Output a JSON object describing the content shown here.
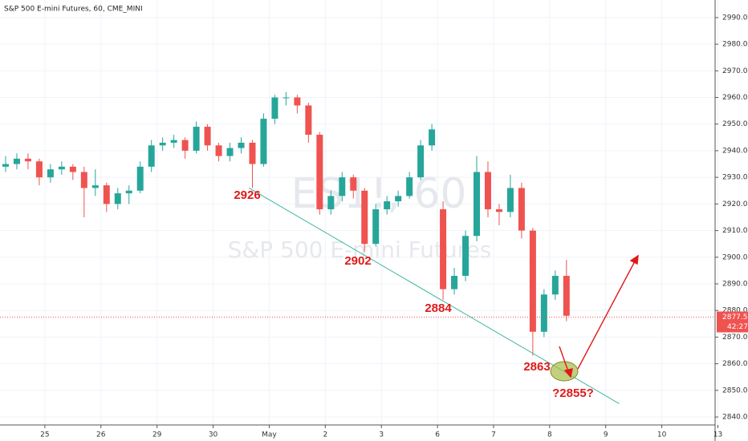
{
  "title": "S&P 500 E-mini Futures, 60, CME_MINI",
  "watermark": {
    "symbol": "ES1!, 60",
    "name": "S&P 500 E-mini Futures"
  },
  "chart_data": {
    "type": "candlestick",
    "x": [
      -0.7,
      -0.5,
      -0.3,
      -0.1,
      0.1,
      0.3,
      0.5,
      0.7,
      0.9,
      1.1,
      1.3,
      1.5,
      1.7,
      1.9,
      2.1,
      2.3,
      2.5,
      2.7,
      2.9,
      3.1,
      3.3,
      3.5,
      3.7,
      3.9,
      4.1,
      4.3,
      4.5,
      4.7,
      4.9,
      5.1,
      5.3,
      5.5,
      5.7,
      5.9,
      6.1,
      6.3,
      6.5,
      6.7,
      6.9,
      7.1,
      7.3,
      7.5,
      7.7,
      7.9,
      8.1,
      8.3,
      8.5,
      8.7,
      8.9,
      9.1,
      9.3
    ],
    "candles": [
      [
        2934,
        2938,
        2932,
        2935
      ],
      [
        2935,
        2939,
        2933,
        2937
      ],
      [
        2937,
        2939,
        2933,
        2936
      ],
      [
        2936,
        2937,
        2927,
        2930
      ],
      [
        2930,
        2935,
        2928,
        2933
      ],
      [
        2933,
        2936,
        2931,
        2934
      ],
      [
        2934,
        2935,
        2929,
        2932
      ],
      [
        2932,
        2934,
        2915,
        2926
      ],
      [
        2926,
        2933,
        2923,
        2927
      ],
      [
        2927,
        2928,
        2917,
        2920
      ],
      [
        2920,
        2926,
        2918,
        2924
      ],
      [
        2924,
        2927,
        2920,
        2925
      ],
      [
        2925,
        2936,
        2924,
        2934
      ],
      [
        2934,
        2944,
        2932,
        2942
      ],
      [
        2942,
        2945,
        2940,
        2943
      ],
      [
        2943,
        2946,
        2941,
        2944
      ],
      [
        2944,
        2945,
        2937,
        2940
      ],
      [
        2940,
        2951,
        2939,
        2949
      ],
      [
        2949,
        2950,
        2940,
        2942
      ],
      [
        2942,
        2943,
        2936,
        2938
      ],
      [
        2938,
        2943,
        2936,
        2941
      ],
      [
        2941,
        2945,
        2939,
        2943
      ],
      [
        2943,
        2944,
        2926,
        2935
      ],
      [
        2935,
        2954,
        2934,
        2952
      ],
      [
        2952,
        2961,
        2950,
        2960
      ],
      [
        2960,
        2962,
        2957,
        2960
      ],
      [
        2960,
        2961,
        2954,
        2957
      ],
      [
        2957,
        2958,
        2943,
        2946
      ],
      [
        2946,
        2947,
        2916,
        2918
      ],
      [
        2918,
        2925,
        2916,
        2923
      ],
      [
        2923,
        2932,
        2921,
        2930
      ],
      [
        2930,
        2931,
        2922,
        2925
      ],
      [
        2925,
        2926,
        2902,
        2905
      ],
      [
        2905,
        2920,
        2904,
        2918
      ],
      [
        2918,
        2923,
        2916,
        2921
      ],
      [
        2921,
        2925,
        2919,
        2923
      ],
      [
        2923,
        2932,
        2922,
        2930
      ],
      [
        2930,
        2944,
        2929,
        2942
      ],
      [
        2942,
        2950,
        2940,
        2948
      ],
      [
        2918,
        2921,
        2884,
        2888
      ],
      [
        2888,
        2896,
        2886,
        2893
      ],
      [
        2893,
        2910,
        2891,
        2908
      ],
      [
        2908,
        2938,
        2906,
        2932
      ],
      [
        2932,
        2936,
        2915,
        2918
      ],
      [
        2918,
        2920,
        2912,
        2917
      ],
      [
        2917,
        2931,
        2915,
        2926
      ],
      [
        2926,
        2928,
        2907,
        2910
      ],
      [
        2910,
        2911,
        2863,
        2872
      ],
      [
        2872,
        2888,
        2870,
        2886
      ],
      [
        2886,
        2895,
        2884,
        2893
      ],
      [
        2893,
        2899,
        2876,
        2878
      ]
    ],
    "up_color": "#26a69a",
    "down_color": "#ef5350",
    "xlim": [
      -0.8,
      11.95
    ],
    "ylim": [
      2837,
      2996.6
    ],
    "xticks": [
      {
        "value": 0,
        "label": "25"
      },
      {
        "value": 1,
        "label": "26"
      },
      {
        "value": 2,
        "label": "29"
      },
      {
        "value": 3,
        "label": "30"
      },
      {
        "value": 4,
        "label": "May"
      },
      {
        "value": 5,
        "label": "2"
      },
      {
        "value": 6,
        "label": "3"
      },
      {
        "value": 7,
        "label": "6"
      },
      {
        "value": 8,
        "label": "7"
      },
      {
        "value": 9,
        "label": "8"
      },
      {
        "value": 10,
        "label": "9"
      },
      {
        "value": 11,
        "label": "10"
      },
      {
        "value": 12,
        "label": "13"
      }
    ],
    "yticks": [
      {
        "value": 2840,
        "label": "2840.00"
      },
      {
        "value": 2850,
        "label": "2850.00"
      },
      {
        "value": 2860,
        "label": "2860.00"
      },
      {
        "value": 2870,
        "label": "2870.00"
      },
      {
        "value": 2880,
        "label": "2880.00"
      },
      {
        "value": 2890,
        "label": "2890.00"
      },
      {
        "value": 2900,
        "label": "2900.00"
      },
      {
        "value": 2910,
        "label": "2910.00"
      },
      {
        "value": 2920,
        "label": "2920.00"
      },
      {
        "value": 2930,
        "label": "2930.00"
      },
      {
        "value": 2940,
        "label": "2940.00"
      },
      {
        "value": 2950,
        "label": "2950.00"
      },
      {
        "value": 2960,
        "label": "2960.00"
      },
      {
        "value": 2970,
        "label": "2970.00"
      },
      {
        "value": 2980,
        "label": "2980.00"
      },
      {
        "value": 2990,
        "label": "2990.00"
      }
    ],
    "grid": true,
    "last_price": {
      "value": 2877.5,
      "label": "2877.50",
      "countdown": "42:27"
    },
    "trendline": {
      "x": [
        3.64,
        10.24
      ],
      "y": [
        2926,
        2845
      ],
      "color": "#3fb59f"
    },
    "annotations": [
      "2926",
      "2902",
      "2884",
      "2863",
      "?2855?"
    ]
  }
}
